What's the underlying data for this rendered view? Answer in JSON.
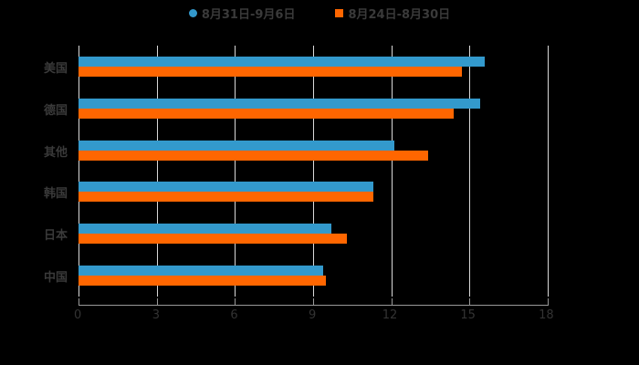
{
  "chart_data": {
    "type": "bar",
    "orientation": "horizontal",
    "title": "",
    "xlabel": "",
    "ylabel": "",
    "categories": [
      "美国",
      "德国",
      "其他",
      "韩国",
      "日本",
      "中国"
    ],
    "series": [
      {
        "name": "8月31日-9月6日",
        "color": "#3399CC",
        "marker": "circle",
        "values": [
          15.6,
          15.4,
          12.1,
          11.3,
          9.7,
          9.4
        ]
      },
      {
        "name": "8月24日-8月30日",
        "color": "#FF6600",
        "marker": "square",
        "values": [
          14.7,
          14.4,
          13.4,
          11.3,
          10.3,
          9.5
        ]
      }
    ],
    "xlim": [
      0,
      18
    ],
    "xticks": [
      "0",
      "3",
      "6",
      "9",
      "12",
      "15",
      "18"
    ],
    "grid": "vertical",
    "legend_position": "top"
  }
}
